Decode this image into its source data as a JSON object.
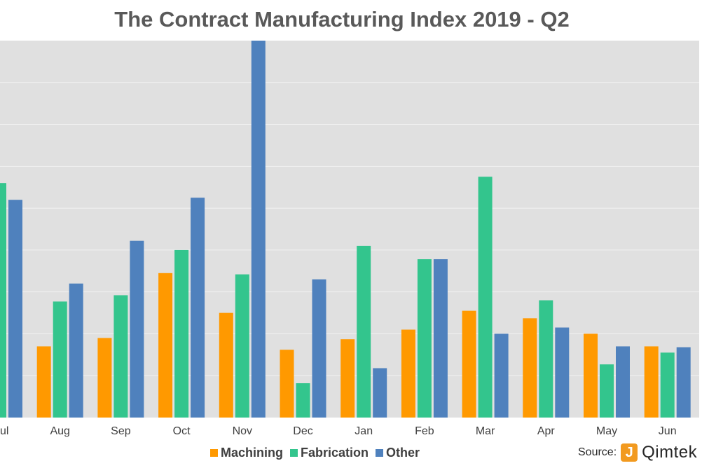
{
  "chart_data": {
    "type": "bar",
    "title": "The Contract Manufacturing Index 2019 - Q2",
    "categories": [
      "Jul",
      "Aug",
      "Sep",
      "Oct",
      "Nov",
      "Dec",
      "Jan",
      "Feb",
      "Mar",
      "Apr",
      "May",
      "Jun"
    ],
    "category_labels": [
      "ul",
      "Aug",
      "Sep",
      "Oct",
      "Nov",
      "Dec",
      "Jan",
      "Feb",
      "Mar",
      "Apr",
      "May",
      "Jun"
    ],
    "series": [
      {
        "name": "Machining",
        "color": "#ff9900",
        "values": [
          null,
          1.7,
          1.9,
          3.45,
          2.5,
          1.62,
          1.87,
          2.1,
          2.55,
          2.37,
          2.0,
          1.7
        ]
      },
      {
        "name": "Fabrication",
        "color": "#33c58d",
        "values": [
          5.6,
          2.77,
          2.92,
          4.0,
          3.42,
          0.82,
          4.1,
          3.78,
          5.75,
          2.8,
          1.27,
          1.55
        ]
      },
      {
        "name": "Other",
        "color": "#4f81bd",
        "values": [
          5.2,
          3.2,
          4.22,
          5.25,
          9.0,
          3.3,
          1.18,
          3.78,
          2.0,
          2.15,
          1.7,
          1.68
        ]
      }
    ],
    "ylim": [
      0,
      9
    ],
    "grid": true,
    "legend_position": "bottom"
  },
  "legend": {
    "items": [
      {
        "label": "Machining",
        "color": "#ff9900"
      },
      {
        "label": "Fabrication",
        "color": "#33c58d"
      },
      {
        "label": "Other",
        "color": "#4f81bd"
      }
    ]
  },
  "source": {
    "label": "Source:",
    "logo_text": "Qimtek",
    "logo_mark": "J"
  },
  "colors": {
    "plot_background": "#e0e0e0",
    "gridline": "#f2f2f2"
  }
}
